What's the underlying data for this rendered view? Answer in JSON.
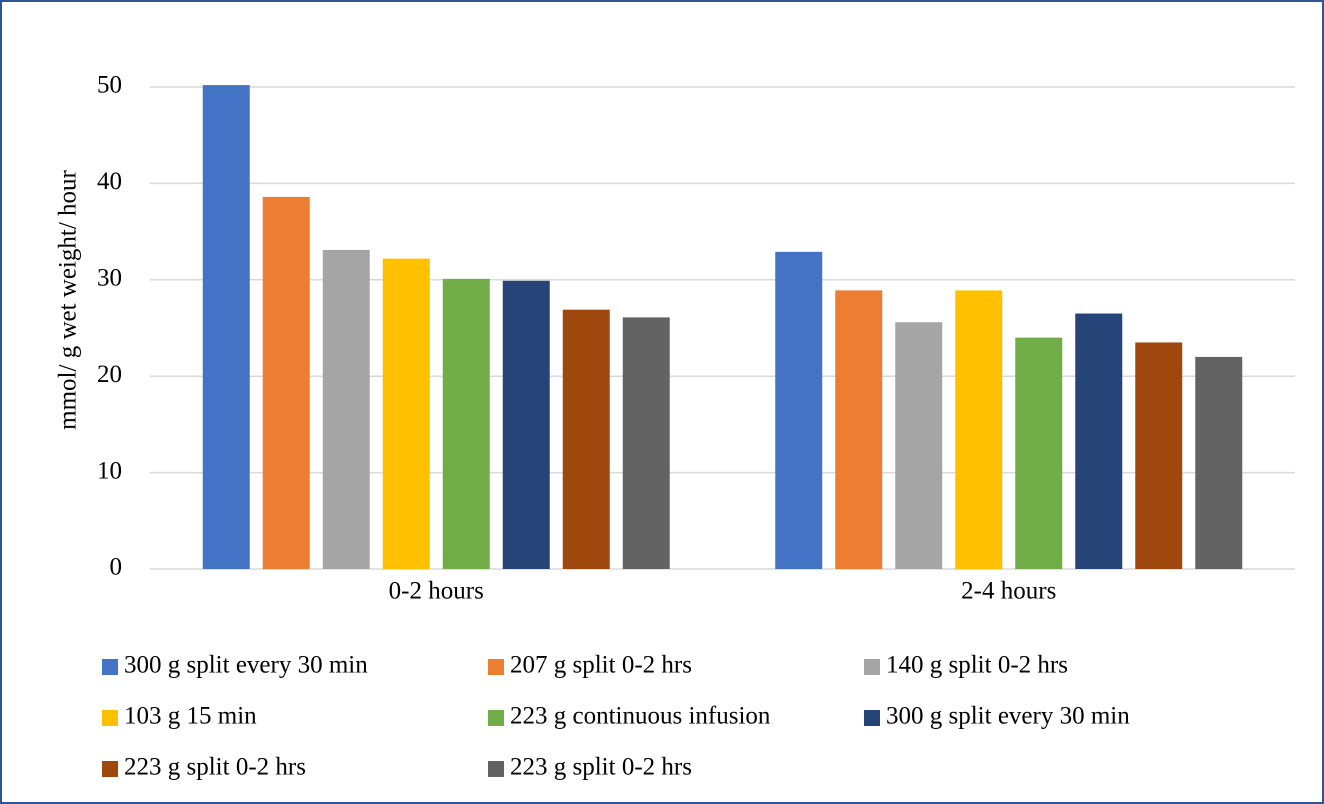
{
  "chart_data": {
    "type": "bar",
    "y_label": "mmol/ g wet weight/ hour",
    "categories": [
      "0-2 hours",
      "2-4 hours"
    ],
    "series": [
      {
        "name": "300 g split every 30 min",
        "color": "#4472c4",
        "values": [
          50.2,
          32.9
        ]
      },
      {
        "name": "207 g split 0-2 hrs",
        "color": "#ed7d31",
        "values": [
          38.6,
          28.9
        ]
      },
      {
        "name": "140 g split 0-2 hrs",
        "color": "#a5a5a5",
        "values": [
          33.1,
          25.6
        ]
      },
      {
        "name": "103 g 15 min",
        "color": "#ffc000",
        "values": [
          32.2,
          28.9
        ]
      },
      {
        "name": "223 g continuous infusion",
        "color": "#70ad47",
        "values": [
          30.1,
          24.0
        ]
      },
      {
        "name": "300 g split every 30 min",
        "color": "#264478",
        "values": [
          29.9,
          26.5
        ]
      },
      {
        "name": "223 g split 0-2 hrs",
        "color": "#9e480e",
        "values": [
          26.9,
          23.5
        ]
      },
      {
        "name": "223 g split 0-2 hrs",
        "color": "#636363",
        "values": [
          26.1,
          22.0
        ]
      }
    ],
    "ylim": [
      0,
      50
    ],
    "yticks": [
      0,
      10,
      20,
      30,
      40,
      50
    ],
    "grid": true,
    "legend": "bottom"
  }
}
